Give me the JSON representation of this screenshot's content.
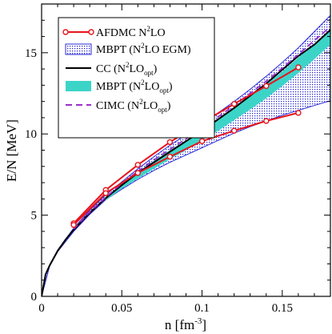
{
  "chart_data": {
    "type": "line",
    "xlabel": "n [fm",
    "xlabel_sup": "-3",
    "xlabel_tail": "]",
    "ylabel": "E/N [MeV]",
    "xlim": [
      0,
      0.18
    ],
    "ylim": [
      0,
      18
    ],
    "xticks": [
      0,
      0.05,
      0.1,
      0.15
    ],
    "xtick_labels": [
      "0",
      "0.05",
      "0.1",
      "0.15"
    ],
    "yticks": [
      0,
      5,
      10,
      15
    ],
    "ytick_labels": [
      "0",
      "5",
      "10",
      "15"
    ],
    "grid": false,
    "legend_position": "top-left",
    "legend": [
      {
        "pre": "AFDMC N",
        "sup": "2",
        "mid": "LO",
        "sub": "",
        "post": ""
      },
      {
        "pre": "MBPT (N",
        "sup": "2",
        "mid": "LO EGM)",
        "sub": "",
        "post": ""
      },
      {
        "pre": "CC (N",
        "sup": "2",
        "mid": "LO",
        "sub": "opt",
        "post": ")"
      },
      {
        "pre": "MBPT (N",
        "sup": "2",
        "mid": "LO",
        "sub": "opt",
        "post": ")"
      },
      {
        "pre": "CIMC (N",
        "sup": "2",
        "mid": "LO",
        "sub": "opt",
        "post": ")"
      }
    ],
    "colors": {
      "afdmc": "#e8141b",
      "egm_band": "#2b2bd6",
      "cc": "#000000",
      "opt_band": "#3dd4c8",
      "cimc": "#9b30c8"
    },
    "afdmc_upper": {
      "x": [
        0.02,
        0.04,
        0.06,
        0.08,
        0.1,
        0.12,
        0.14,
        0.16
      ],
      "y": [
        4.5,
        6.55,
        8.1,
        9.5,
        10.7,
        11.85,
        12.95,
        14.1
      ]
    },
    "afdmc_lower": {
      "x": [
        0.02,
        0.04,
        0.06,
        0.08,
        0.1,
        0.12,
        0.14,
        0.16
      ],
      "y": [
        4.4,
        6.35,
        7.6,
        8.6,
        9.55,
        10.2,
        10.8,
        11.3
      ]
    },
    "egm_band": {
      "x": [
        0.0,
        0.005,
        0.01,
        0.02,
        0.03,
        0.04,
        0.05,
        0.06,
        0.07,
        0.08,
        0.09,
        0.1,
        0.11,
        0.12,
        0.13,
        0.14,
        0.15,
        0.16,
        0.17,
        0.18
      ],
      "upper": [
        0.0,
        1.9,
        2.85,
        4.2,
        5.3,
        6.25,
        7.05,
        7.85,
        8.6,
        9.3,
        9.95,
        10.6,
        11.3,
        12.0,
        12.75,
        13.55,
        14.4,
        15.3,
        16.3,
        17.3
      ],
      "lower": [
        0.0,
        1.85,
        2.75,
        4.0,
        5.05,
        5.95,
        6.6,
        7.2,
        7.75,
        8.25,
        8.7,
        9.15,
        9.6,
        10.05,
        10.45,
        10.8,
        11.15,
        11.45,
        11.75,
        12.05
      ]
    },
    "cc_line": {
      "x": [
        0.0,
        0.0025,
        0.005,
        0.01,
        0.015,
        0.02,
        0.03,
        0.04,
        0.05,
        0.06,
        0.07,
        0.08,
        0.09,
        0.1,
        0.11,
        0.12,
        0.13,
        0.14,
        0.15,
        0.16,
        0.17,
        0.18
      ],
      "y": [
        0.0,
        1.35,
        1.9,
        2.8,
        3.5,
        4.1,
        5.15,
        6.05,
        6.85,
        7.6,
        8.25,
        8.9,
        9.55,
        10.2,
        10.9,
        11.6,
        12.35,
        13.1,
        13.95,
        14.8,
        15.5,
        16.4
      ]
    },
    "opt_band": {
      "x": [
        0.04,
        0.05,
        0.06,
        0.07,
        0.08,
        0.09,
        0.1,
        0.11,
        0.12,
        0.13,
        0.14,
        0.15,
        0.16,
        0.17,
        0.18
      ],
      "upper": [
        6.1,
        6.95,
        7.65,
        8.35,
        9.0,
        9.6,
        10.3,
        10.95,
        11.6,
        12.3,
        13.05,
        13.85,
        14.7,
        15.55,
        16.4
      ],
      "lower": [
        5.9,
        6.65,
        7.25,
        7.85,
        8.45,
        9.0,
        9.6,
        10.2,
        10.85,
        11.5,
        12.2,
        12.95,
        13.75,
        14.6,
        15.5
      ]
    },
    "cimc_line": {
      "x": [
        0.02,
        0.03,
        0.04,
        0.05,
        0.06,
        0.07,
        0.08,
        0.09,
        0.1,
        0.11,
        0.12,
        0.13,
        0.14,
        0.15,
        0.16,
        0.17,
        0.18
      ],
      "y": [
        4.15,
        5.2,
        6.1,
        6.95,
        7.7,
        8.4,
        9.05,
        9.7,
        10.35,
        11.05,
        11.75,
        12.5,
        13.25,
        14.05,
        14.9,
        15.75,
        16.6
      ]
    }
  }
}
